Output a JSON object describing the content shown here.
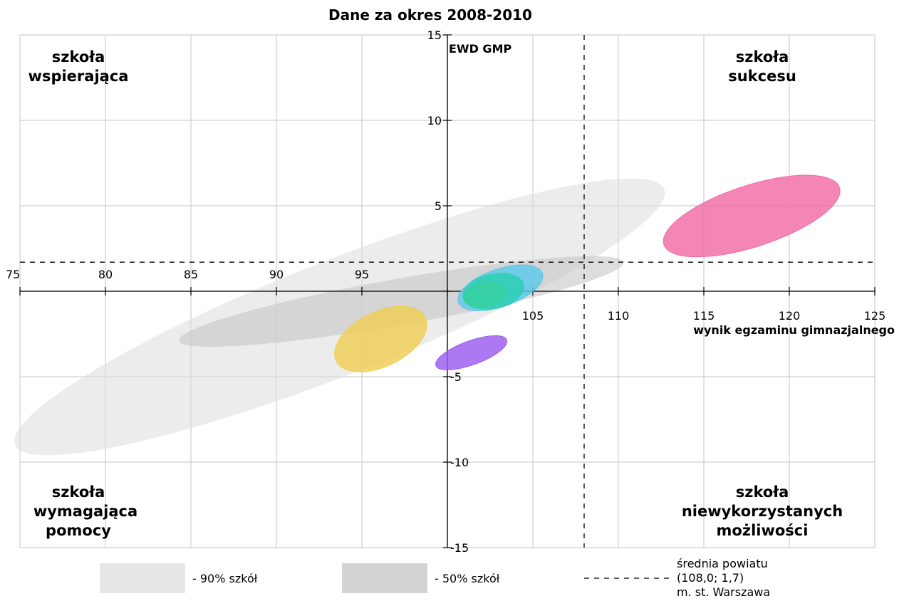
{
  "chart_data": {
    "type": "scatter",
    "title": "Dane za okres 2008-2010",
    "xlabel": "wynik egzaminu gimnazjalnego",
    "ylabel": "EWD GMP",
    "xlim": [
      75,
      125
    ],
    "ylim": [
      -15,
      15
    ],
    "x_ticks": [
      "75",
      "80",
      "85",
      "90",
      "95",
      "105",
      "110",
      "115",
      "120",
      "125"
    ],
    "y_ticks": [
      "15",
      "10",
      "5",
      "-5",
      "-10",
      "-15"
    ],
    "grid": true,
    "quadrant_labels": {
      "top_left": [
        "szkoła",
        "wspierająca"
      ],
      "top_right": [
        "szkoła",
        "sukcesu"
      ],
      "bottom_left": [
        "szkoła",
        "wymagająca",
        "pomocy"
      ],
      "bottom_right": [
        "szkoła",
        "niewykorzystanych",
        "możliwości"
      ]
    },
    "reference_lines": {
      "x": 108.0,
      "y": 1.7
    },
    "areas": [
      {
        "legend": "- 90% szkół",
        "color": "#dcdcdc",
        "opacity": 0.55,
        "cx": 93.7,
        "cy": -1.5,
        "rx": 20.4,
        "ry": 3.35,
        "angle_deg": -21.5
      },
      {
        "legend": "- 50% szkół",
        "color": "#c6c6c6",
        "opacity": 0.6,
        "cx": 97.3,
        "cy": -0.6,
        "rx": 13.2,
        "ry": 1.35,
        "angle_deg": -10
      }
    ],
    "series": [
      {
        "color": "#f06ba5",
        "cx": 117.8,
        "cy": 4.4,
        "rx": 5.4,
        "ry": 1.8,
        "angle_deg": -18
      },
      {
        "color": "#5bc8ea",
        "cx": 103.1,
        "cy": 0.2,
        "rx": 2.6,
        "ry": 1.1,
        "angle_deg": -19
      },
      {
        "color": "#6fd94f",
        "cx": 102.2,
        "cy": -0.2,
        "rx": 1.3,
        "ry": 0.7,
        "angle_deg": -10
      },
      {
        "color": "#2bd0b2",
        "cx": 102.7,
        "cy": 0.0,
        "rx": 1.8,
        "ry": 1.0,
        "angle_deg": -12
      },
      {
        "color": "#f0cd55",
        "cx": 96.1,
        "cy": -2.8,
        "rx": 2.9,
        "ry": 1.6,
        "angle_deg": -26
      },
      {
        "color": "#9b5cf0",
        "cx": 101.4,
        "cy": -3.6,
        "rx": 2.2,
        "ry": 0.7,
        "angle_deg": -20
      }
    ],
    "legend": {
      "avg_label": [
        "średnia powiatu",
        "(108,0; 1,7)",
        "m. st. Warszawa"
      ]
    }
  }
}
